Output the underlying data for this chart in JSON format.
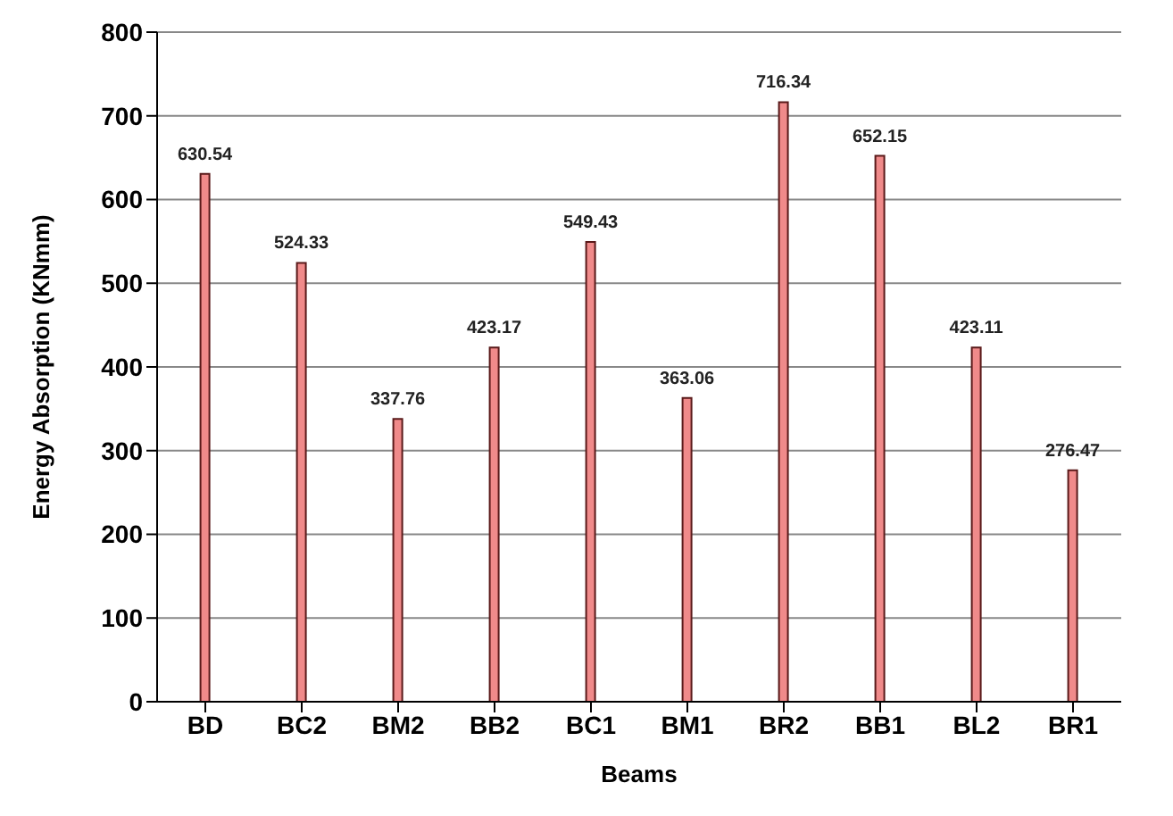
{
  "chart_data": {
    "type": "bar",
    "xlabel": "Beams",
    "ylabel": "Energy Absorption (KNmm)",
    "categories": [
      "BD",
      "BC2",
      "BM2",
      "BB2",
      "BC1",
      "BM1",
      "BR2",
      "BB1",
      "BL2",
      "BR1"
    ],
    "values": [
      630.54,
      524.33,
      337.76,
      423.17,
      549.43,
      363.06,
      716.34,
      652.15,
      423.11,
      276.47
    ],
    "color": "#f08a8a",
    "ylim": [
      0,
      800
    ],
    "yticks": [
      0,
      100,
      200,
      300,
      400,
      500,
      600,
      700,
      800
    ],
    "grid": "y",
    "data_labels": true
  }
}
